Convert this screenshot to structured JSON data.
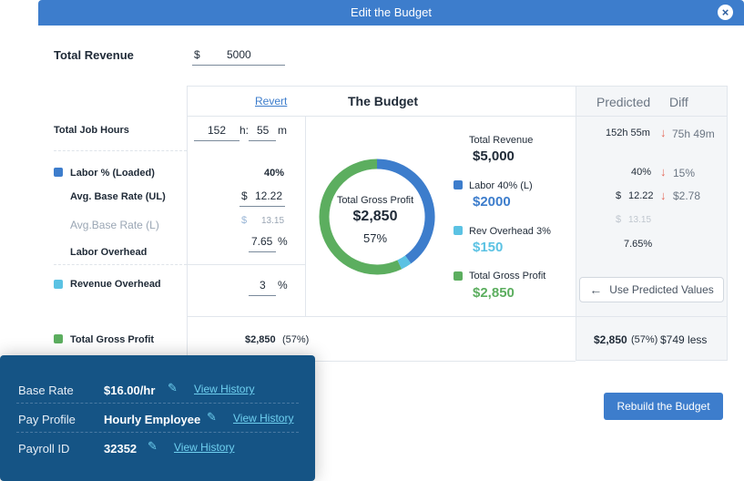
{
  "header": {
    "title": "Edit the Budget",
    "close_glyph": "×"
  },
  "revenue": {
    "label": "Total Revenue",
    "currency": "$",
    "value": "5000"
  },
  "table": {
    "revert_label": "Revert",
    "budget_title": "The Budget",
    "predicted_header": "Predicted",
    "diff_header": "Diff"
  },
  "rows": {
    "job_hours": {
      "label": "Total Job Hours",
      "hours": "152",
      "hours_unit": "h:",
      "minutes": "55",
      "minutes_unit": "m",
      "predicted": "152h 55m",
      "diff": "75h 49m"
    },
    "labor_pct": {
      "label": "Labor % (Loaded)",
      "value": "40%",
      "predicted": "40%",
      "diff": "15%"
    },
    "avg_base_ul": {
      "label": "Avg. Base Rate (UL)",
      "currency": "$",
      "value": "12.22",
      "pred_currency": "$",
      "predicted": "12.22",
      "diff": "$2.78"
    },
    "avg_base_l": {
      "label": "Avg.Base Rate (L)",
      "currency": "$",
      "value": "13.15",
      "pred_currency": "$",
      "predicted": "13.15"
    },
    "labor_overhead": {
      "label": "Labor Overhead",
      "value": "7.65",
      "unit": "%",
      "predicted": "7.65%"
    },
    "revenue_overhead": {
      "label": "Revenue Overhead",
      "value": "3",
      "unit": "%"
    },
    "gross_profit": {
      "label": "Total Gross Profit",
      "value": "$2,850",
      "pct": "(57%)",
      "predicted": "$2,850",
      "predicted_pct": "(57%)",
      "diff": "$749 less"
    }
  },
  "donut": {
    "center_label": "Total Gross Profit",
    "center_value": "$2,850",
    "center_pct": "57%"
  },
  "legend": {
    "total_revenue_label": "Total Revenue",
    "total_revenue_value": "$5,000",
    "labor_label": "Labor 40% (L)",
    "labor_value": "$2000",
    "overhead_label": "Rev Overhead 3%",
    "overhead_value": "$150",
    "profit_label": "Total Gross Profit",
    "profit_value": "$2,850"
  },
  "chart_data": {
    "type": "pie",
    "title": "Total Gross Profit",
    "categories": [
      "Labor",
      "Rev Overhead",
      "Total Gross Profit"
    ],
    "values": [
      2000,
      150,
      2850
    ],
    "colors": [
      "#3d7dcc",
      "#5bc2e3",
      "#5cae5f"
    ]
  },
  "buttons": {
    "use_predicted": "Use Predicted Values",
    "rebuild": "Rebuild the Budget"
  },
  "employee": {
    "base_rate_label": "Base Rate",
    "base_rate_value": "$16.00/hr",
    "pay_profile_label": "Pay Profile",
    "pay_profile_value": "Hourly Employee",
    "payroll_id_label": "Payroll ID",
    "payroll_id_value": "32352",
    "view_history": "View History"
  },
  "icons": {
    "close": "close-icon",
    "arrow_down": "arrow-down-icon",
    "arrow_left": "arrow-left-icon",
    "pencil": "pencil-icon"
  }
}
